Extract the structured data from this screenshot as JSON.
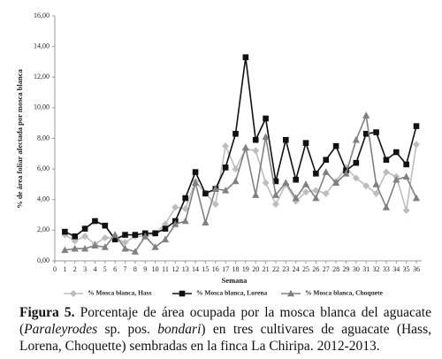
{
  "chart_data": {
    "type": "line",
    "x_label": "Semana",
    "y_label": "% de área foliar afectada por mosca blanca",
    "x": [
      1,
      2,
      3,
      4,
      5,
      6,
      7,
      8,
      9,
      10,
      11,
      12,
      13,
      14,
      15,
      16,
      17,
      18,
      19,
      20,
      21,
      22,
      23,
      24,
      25,
      26,
      27,
      28,
      29,
      30,
      31,
      32,
      33,
      34,
      35,
      36
    ],
    "xlim": [
      0,
      36
    ],
    "xticks": [
      0,
      1,
      2,
      3,
      4,
      5,
      6,
      7,
      8,
      9,
      10,
      11,
      12,
      13,
      14,
      15,
      16,
      17,
      18,
      19,
      20,
      21,
      22,
      23,
      24,
      25,
      26,
      27,
      28,
      29,
      30,
      31,
      32,
      33,
      34,
      35,
      36
    ],
    "ylim": [
      0,
      16
    ],
    "yticks": [
      {
        "value": 0,
        "label": "0,00"
      },
      {
        "value": 2,
        "label": "2,00"
      },
      {
        "value": 4,
        "label": "4,00"
      },
      {
        "value": 6,
        "label": "6,00"
      },
      {
        "value": 8,
        "label": "8,00"
      },
      {
        "value": 10,
        "label": "10,00"
      },
      {
        "value": 12,
        "label": "12,00"
      },
      {
        "value": 14,
        "label": "14,00"
      },
      {
        "value": 16,
        "label": "16,00"
      }
    ],
    "grid": false,
    "legend": "bottom",
    "series": [
      {
        "name": "% Mosca blanca, Hass",
        "color": "#bdbdbd",
        "marker": "diamond",
        "values": [
          1.7,
          1.3,
          1.6,
          1.1,
          1.5,
          1.5,
          1.2,
          1.6,
          1.6,
          1.8,
          2.4,
          3.5,
          3.4,
          5.2,
          4.4,
          3.7,
          7.5,
          6.0,
          7.3,
          7.2,
          5.1,
          3.7,
          5.0,
          3.9,
          4.5,
          4.6,
          4.4,
          5.2,
          6.1,
          5.4,
          4.9,
          4.4,
          5.8,
          5.5,
          3.3,
          7.6
        ]
      },
      {
        "name": "% Mosca blanca, Lorena",
        "color": "#111111",
        "marker": "square",
        "values": [
          1.9,
          1.6,
          2.1,
          2.6,
          2.3,
          1.4,
          1.7,
          1.7,
          1.8,
          1.8,
          2.1,
          2.6,
          4.1,
          5.8,
          4.4,
          4.7,
          6.1,
          8.3,
          13.3,
          7.9,
          9.3,
          5.2,
          7.9,
          5.3,
          7.7,
          5.7,
          6.6,
          7.5,
          5.9,
          6.4,
          8.3,
          8.4,
          6.6,
          7.1,
          6.3,
          8.8
        ]
      },
      {
        "name": "% Mosca blanca, Choquete",
        "color": "#808080",
        "marker": "triangle",
        "values": [
          0.7,
          0.8,
          0.8,
          1.0,
          0.9,
          1.7,
          0.8,
          0.6,
          1.6,
          0.9,
          1.4,
          2.4,
          2.6,
          5.1,
          2.5,
          4.7,
          4.6,
          5.2,
          7.4,
          4.3,
          8.1,
          4.3,
          5.1,
          4.1,
          5.0,
          4.1,
          5.8,
          5.1,
          5.7,
          7.9,
          9.5,
          5.0,
          3.5,
          5.3,
          5.5,
          4.1
        ]
      }
    ]
  },
  "caption": {
    "label": "Figura 5.",
    "parts": [
      {
        "text": " Porcentaje de área ocupada por la mosca blanca del aguacate ("
      },
      {
        "text": "Paraleyrodes",
        "italic": true
      },
      {
        "text": " sp. pos. "
      },
      {
        "text": "bondari",
        "italic": true
      },
      {
        "text": ") en tres cultivares de aguacate (Hass, Lorena, Choquette) sembradas en la finca La Chiripa. 2012-2013."
      }
    ]
  }
}
